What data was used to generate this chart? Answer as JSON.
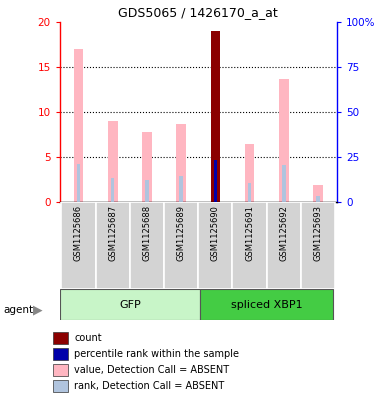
{
  "title": "GDS5065 / 1426170_a_at",
  "samples": [
    "GSM1125686",
    "GSM1125687",
    "GSM1125688",
    "GSM1125689",
    "GSM1125690",
    "GSM1125691",
    "GSM1125692",
    "GSM1125693"
  ],
  "value_absent": [
    17.0,
    9.0,
    7.8,
    8.7,
    null,
    6.5,
    13.7,
    1.9
  ],
  "rank_absent": [
    4.3,
    2.7,
    2.5,
    2.9,
    null,
    2.1,
    4.1,
    0.7
  ],
  "count_value": [
    null,
    null,
    null,
    null,
    19.0,
    null,
    null,
    null
  ],
  "count_rank": [
    null,
    null,
    null,
    null,
    4.7,
    null,
    null,
    null
  ],
  "ylim_left": [
    0,
    20
  ],
  "ylim_right": [
    0,
    100
  ],
  "yticks_left": [
    0,
    5,
    10,
    15,
    20
  ],
  "yticks_right": [
    0,
    25,
    50,
    75,
    100
  ],
  "yticklabels_right": [
    "0",
    "25",
    "50",
    "75",
    "100%"
  ],
  "color_count": "#8B0000",
  "color_rank_count": "#0000AA",
  "color_value_absent": "#FFB6C1",
  "color_rank_absent": "#B0C4DE",
  "gfp_light": "#c8f5c8",
  "gfp_dark": "#44cc44",
  "legend_items": [
    {
      "color": "#8B0000",
      "label": "count"
    },
    {
      "color": "#0000AA",
      "label": "percentile rank within the sample"
    },
    {
      "color": "#FFB6C1",
      "label": "value, Detection Call = ABSENT"
    },
    {
      "color": "#B0C4DE",
      "label": "rank, Detection Call = ABSENT"
    }
  ]
}
